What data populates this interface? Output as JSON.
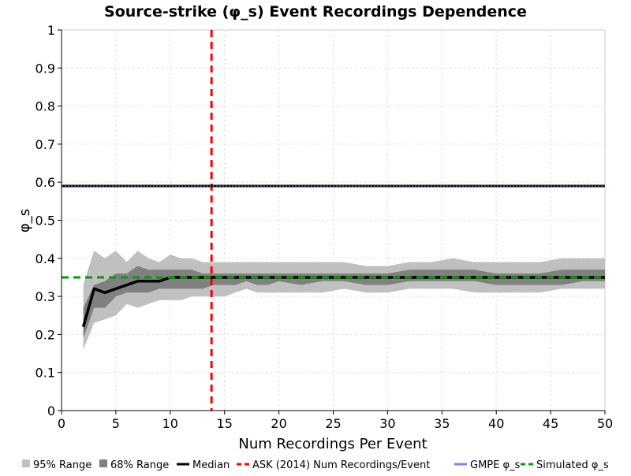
{
  "chart_data": {
    "type": "line",
    "title": "Source-strike (φ_s) Event Recordings Dependence",
    "xlabel": "Num Recordings Per Event",
    "ylabel": "φ_s",
    "xlim": [
      0,
      50
    ],
    "ylim": [
      0,
      1
    ],
    "grid": true,
    "legend_position": "bottom",
    "x_ticks": [
      "0",
      "5",
      "10",
      "15",
      "20",
      "25",
      "30",
      "35",
      "40",
      "45",
      "50"
    ],
    "y_ticks": [
      "0",
      "0.1",
      "0.2",
      "0.3",
      "0.4",
      "0.5",
      "0.6",
      "0.7",
      "0.8",
      "0.9",
      "1"
    ],
    "x": [
      2,
      3,
      4,
      5,
      6,
      7,
      8,
      9,
      10,
      11,
      12,
      13,
      14,
      15,
      16,
      17,
      18,
      19,
      20,
      22,
      24,
      26,
      28,
      30,
      32,
      34,
      36,
      38,
      40,
      42,
      44,
      46,
      48,
      50
    ],
    "series": [
      {
        "name": "95% Range",
        "kind": "band",
        "color": "#c0c0c0",
        "lower": [
          0.16,
          0.23,
          0.24,
          0.25,
          0.28,
          0.27,
          0.28,
          0.29,
          0.29,
          0.29,
          0.3,
          0.3,
          0.3,
          0.3,
          0.31,
          0.32,
          0.31,
          0.31,
          0.31,
          0.31,
          0.31,
          0.32,
          0.31,
          0.31,
          0.32,
          0.32,
          0.32,
          0.31,
          0.31,
          0.31,
          0.31,
          0.32,
          0.32,
          0.32
        ],
        "upper": [
          0.33,
          0.42,
          0.4,
          0.42,
          0.39,
          0.42,
          0.4,
          0.39,
          0.41,
          0.4,
          0.4,
          0.39,
          0.39,
          0.39,
          0.39,
          0.39,
          0.39,
          0.39,
          0.39,
          0.39,
          0.39,
          0.39,
          0.38,
          0.38,
          0.39,
          0.39,
          0.4,
          0.39,
          0.39,
          0.39,
          0.39,
          0.4,
          0.4,
          0.4
        ]
      },
      {
        "name": "68% Range",
        "kind": "band",
        "color": "#808080",
        "lower": [
          0.19,
          0.27,
          0.27,
          0.3,
          0.31,
          0.31,
          0.31,
          0.32,
          0.32,
          0.32,
          0.32,
          0.32,
          0.33,
          0.33,
          0.33,
          0.34,
          0.33,
          0.33,
          0.34,
          0.33,
          0.34,
          0.34,
          0.33,
          0.33,
          0.34,
          0.34,
          0.34,
          0.34,
          0.33,
          0.33,
          0.33,
          0.33,
          0.34,
          0.34
        ],
        "upper": [
          0.27,
          0.33,
          0.34,
          0.36,
          0.36,
          0.38,
          0.37,
          0.37,
          0.37,
          0.37,
          0.37,
          0.36,
          0.36,
          0.36,
          0.36,
          0.36,
          0.36,
          0.36,
          0.36,
          0.36,
          0.36,
          0.36,
          0.36,
          0.36,
          0.37,
          0.37,
          0.37,
          0.37,
          0.36,
          0.36,
          0.36,
          0.37,
          0.37,
          0.37
        ]
      },
      {
        "name": "Median",
        "kind": "line",
        "color": "#000000",
        "values": [
          0.22,
          0.32,
          0.31,
          0.32,
          0.33,
          0.34,
          0.34,
          0.34,
          0.35,
          0.35,
          0.35,
          0.35,
          0.35,
          0.35,
          0.35,
          0.35,
          0.35,
          0.35,
          0.35,
          0.35,
          0.35,
          0.35,
          0.35,
          0.35,
          0.35,
          0.35,
          0.35,
          0.35,
          0.35,
          0.35,
          0.35,
          0.35,
          0.35,
          0.35
        ]
      },
      {
        "name": "ASK (2014) Num Recordings/Event",
        "kind": "vline",
        "color": "#ff0000",
        "x_value": 13.8
      },
      {
        "name": "GMPE φ_s",
        "kind": "hline",
        "color": "#8080ff",
        "y_value": 0.59
      },
      {
        "name": "Simulated φ_s",
        "kind": "hline",
        "color": "#00a000",
        "y_value": 0.35
      }
    ]
  }
}
